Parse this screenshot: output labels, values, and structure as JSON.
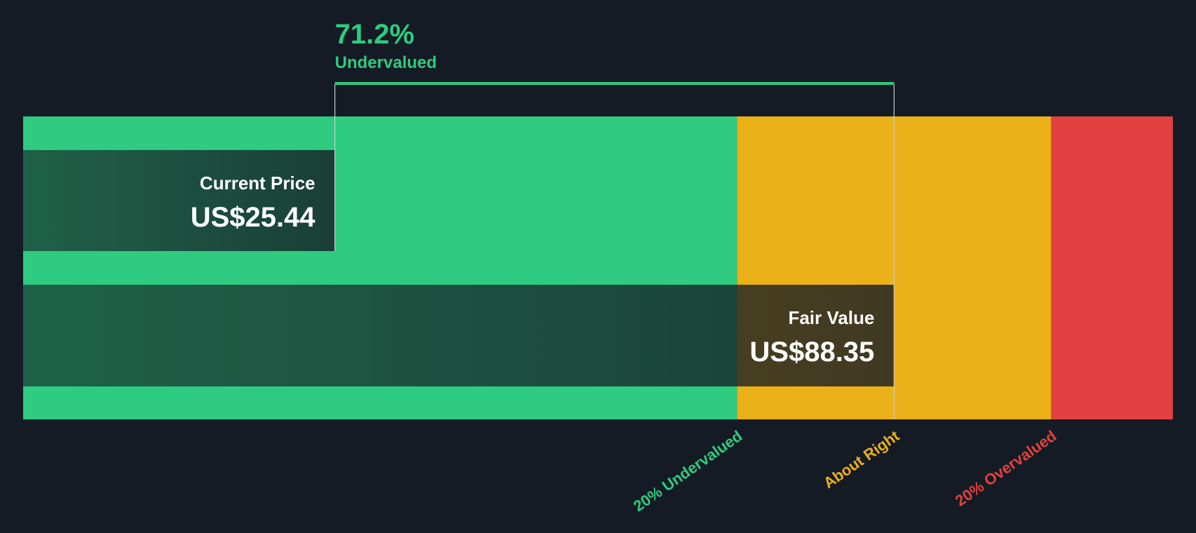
{
  "chart_data": {
    "type": "valuation",
    "headline": "71.2%",
    "headline_caption": "Undervalued",
    "current_price": {
      "title": "Current Price",
      "value": 25.44,
      "label": "US$25.44"
    },
    "fair_value": {
      "title": "Fair Value",
      "value": 88.35,
      "label": "US$88.35"
    },
    "zones": [
      {
        "label": "20% Undervalued",
        "value": 70.68,
        "color": "#2ecb80"
      },
      {
        "label": "About Right",
        "value": 106.02,
        "color": "#ebb118"
      },
      {
        "label": "20% Overvalued",
        "color": "#e34141"
      }
    ],
    "zone_label_positions": [
      70.68,
      88.35,
      106.02
    ]
  }
}
